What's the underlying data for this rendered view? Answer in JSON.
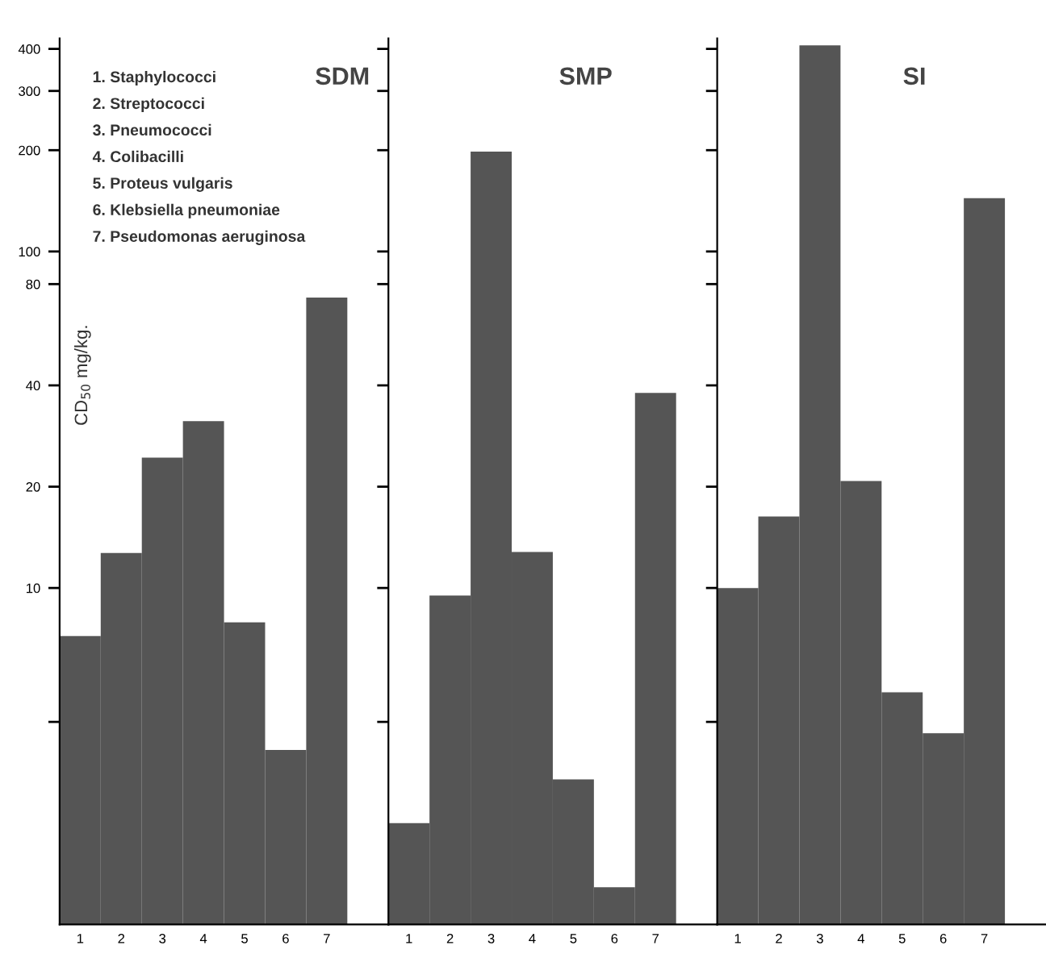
{
  "chart_data": [
    {
      "type": "bar",
      "title": "SDM",
      "ylabel": "CD$_{50}$ mg/kg.",
      "categories": [
        "1",
        "2",
        "3",
        "4",
        "5",
        "6",
        "7"
      ],
      "values": [
        7.2,
        12.7,
        24.4,
        31.3,
        7.9,
        3.3,
        73
      ],
      "color": "#555555",
      "log": true,
      "ylim": [
        1,
        430
      ],
      "yticks": [
        {
          "value": 4,
          "label": null
        },
        10,
        20,
        40,
        80,
        100,
        200,
        300,
        400
      ],
      "grid": false,
      "annotations": [
        "1. Staphylococci",
        "2. Streptococci",
        "3. Pneumococci",
        "4. Colibacilli",
        "5. Proteus vulgaris",
        "6. Klebsiella pneumoniae",
        "7. Pseudomonas aeruginosa"
      ]
    },
    {
      "type": "bar",
      "title": "SMP",
      "categories": [
        "1",
        "2",
        "3",
        "4",
        "5",
        "6",
        "7"
      ],
      "values": [
        2.0,
        9.5,
        198,
        12.8,
        2.7,
        1.29,
        38
      ],
      "color": "#555555",
      "log": true,
      "ylim": [
        1,
        430
      ],
      "yticks": [
        {
          "value": 4,
          "label": null
        },
        {
          "value": 10,
          "label": null
        },
        {
          "value": 20,
          "label": null
        },
        {
          "value": 40,
          "label": null
        },
        {
          "value": 80,
          "label": null
        },
        {
          "value": 100,
          "label": null
        },
        {
          "value": 200,
          "label": null
        },
        {
          "value": 300,
          "label": null
        },
        {
          "value": 400,
          "label": null
        }
      ],
      "tick_labels": "x",
      "grid": false
    },
    {
      "type": "bar",
      "title": "SI",
      "categories": [
        "1",
        "2",
        "3",
        "4",
        "5",
        "6",
        "7"
      ],
      "values": [
        10,
        16.3,
        410,
        20.8,
        4.9,
        3.7,
        144
      ],
      "color": "#555555",
      "log": true,
      "ylim": [
        1,
        430
      ],
      "yticks": [
        {
          "value": 4,
          "label": null
        },
        {
          "value": 10,
          "label": null
        },
        {
          "value": 20,
          "label": null
        },
        {
          "value": 40,
          "label": null
        },
        {
          "value": 80,
          "label": null
        },
        {
          "value": 100,
          "label": null
        },
        {
          "value": 200,
          "label": null
        },
        {
          "value": 300,
          "label": null
        },
        {
          "value": 400,
          "label": null
        }
      ],
      "tick_labels": "x",
      "grid": false
    }
  ]
}
